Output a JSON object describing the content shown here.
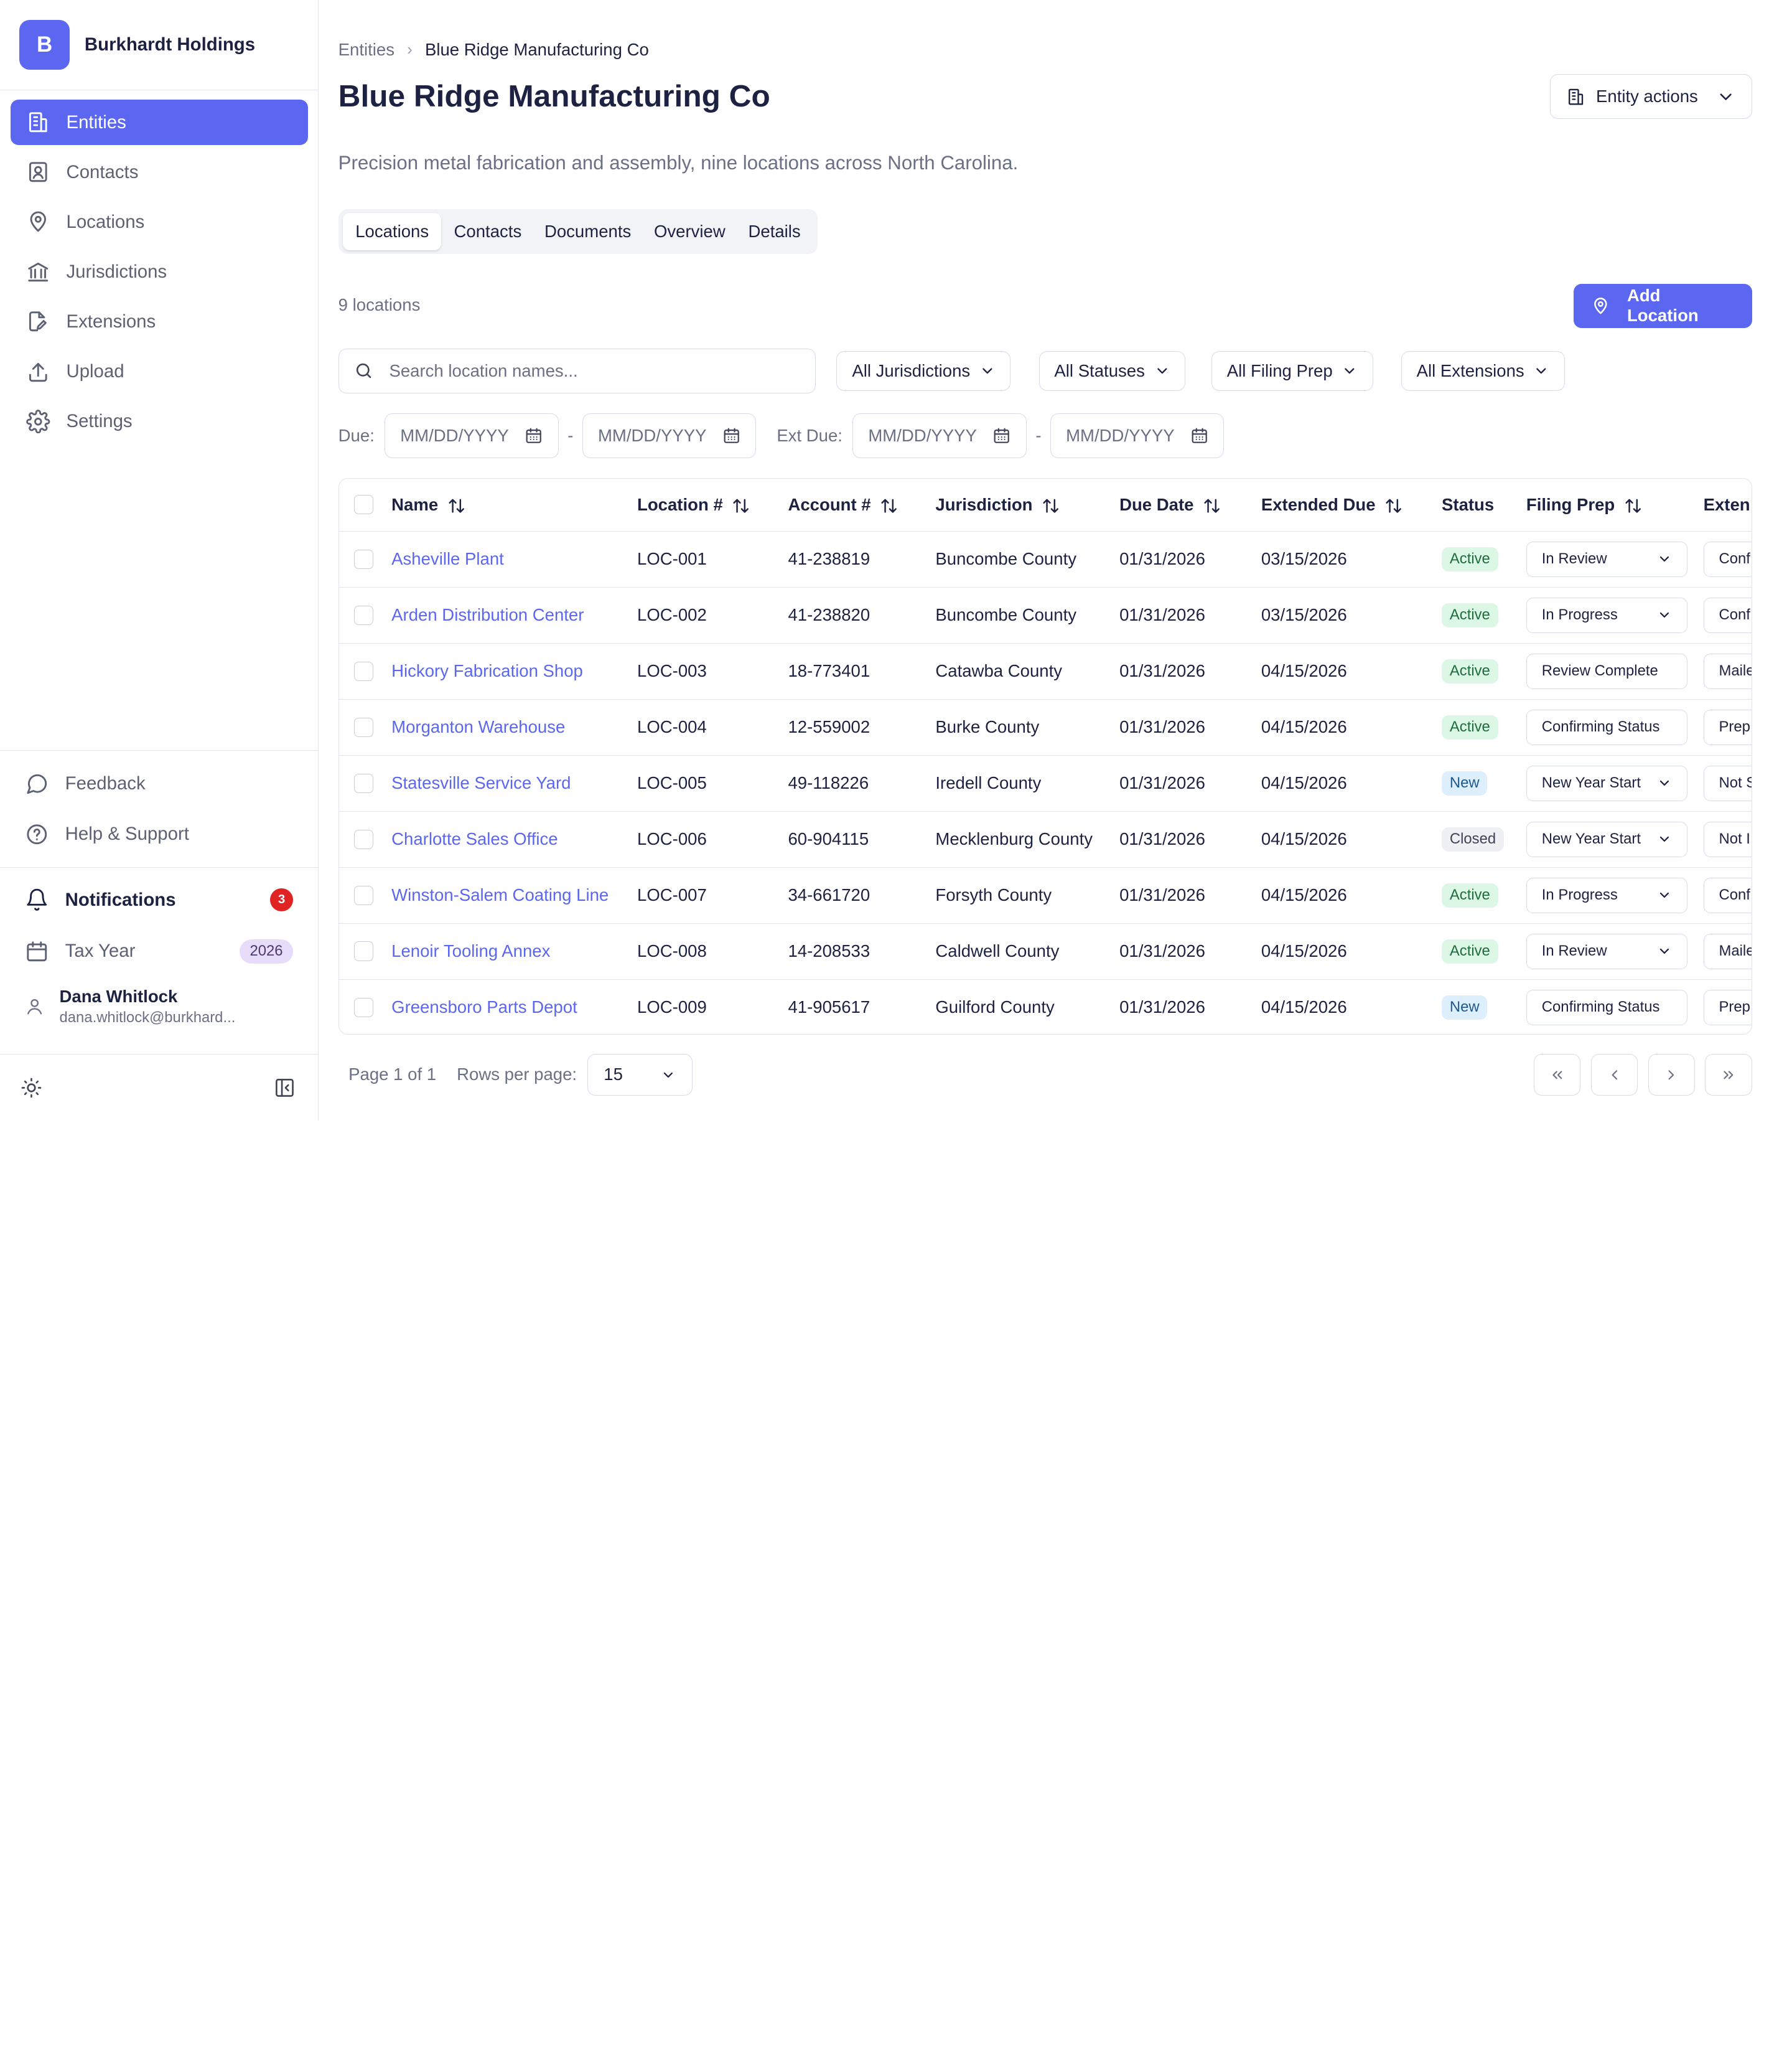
{
  "org": {
    "logo_letter": "B",
    "name": "Burkhardt Holdings"
  },
  "nav": [
    {
      "label": "Entities",
      "icon": "building-icon",
      "active": true
    },
    {
      "label": "Contacts",
      "icon": "contact-icon"
    },
    {
      "label": "Locations",
      "icon": "map-pin-icon"
    },
    {
      "label": "Jurisdictions",
      "icon": "landmark-icon"
    },
    {
      "label": "Extensions",
      "icon": "file-edit-icon"
    },
    {
      "label": "Upload",
      "icon": "upload-icon"
    },
    {
      "label": "Settings",
      "icon": "gear-icon"
    }
  ],
  "sidebar_bottom": {
    "feedback": "Feedback",
    "help": "Help & Support",
    "notifications": "Notifications",
    "notifications_count": "3",
    "tax_year_label": "Tax Year",
    "tax_year": "2026"
  },
  "user": {
    "name": "Dana Whitlock",
    "email": "dana.whitlock@burkhard..."
  },
  "breadcrumb": {
    "root": "Entities",
    "current": "Blue Ridge Manufacturing Co"
  },
  "page": {
    "title": "Blue Ridge Manufacturing Co",
    "actions_label": "Entity actions",
    "description": "Precision metal fabrication and assembly, nine locations across North Carolina.",
    "count": "9 locations",
    "add_label": "Add Location"
  },
  "tabs": [
    "Locations",
    "Contacts",
    "Documents",
    "Overview",
    "Details"
  ],
  "filters": {
    "search_placeholder": "Search location names...",
    "jurisdictions": "All Jurisdictions",
    "statuses": "All Statuses",
    "filing_prep": "All Filing Prep",
    "extensions": "All Extensions",
    "due_label": "Due:",
    "ext_due_label": "Ext Due:",
    "date_placeholder": "MM/DD/YYYY",
    "dash": "-"
  },
  "table": {
    "columns": [
      "Name",
      "Location #",
      "Account #",
      "Jurisdiction",
      "Due Date",
      "Extended Due",
      "Status",
      "Filing Prep",
      "Exten"
    ],
    "rows": [
      {
        "name": "Asheville Plant",
        "loc": "LOC-001",
        "acct": "41-238819",
        "jur": "Buncombe County",
        "due": "01/31/2026",
        "ext_due": "03/15/2026",
        "status": "Active",
        "prep": "In Review",
        "prep_dd": true,
        "ext": "Conf"
      },
      {
        "name": "Arden Distribution Center",
        "loc": "LOC-002",
        "acct": "41-238820",
        "jur": "Buncombe County",
        "due": "01/31/2026",
        "ext_due": "03/15/2026",
        "status": "Active",
        "prep": "In Progress",
        "prep_dd": true,
        "ext": "Conf"
      },
      {
        "name": "Hickory Fabrication Shop",
        "loc": "LOC-003",
        "acct": "18-773401",
        "jur": "Catawba County",
        "due": "01/31/2026",
        "ext_due": "04/15/2026",
        "status": "Active",
        "prep": "Review Complete",
        "prep_dd": false,
        "ext": "Maile"
      },
      {
        "name": "Morganton Warehouse",
        "loc": "LOC-004",
        "acct": "12-559002",
        "jur": "Burke County",
        "due": "01/31/2026",
        "ext_due": "04/15/2026",
        "status": "Active",
        "prep": "Confirming Status",
        "prep_dd": false,
        "ext": "Prep"
      },
      {
        "name": "Statesville Service Yard",
        "loc": "LOC-005",
        "acct": "49-118226",
        "jur": "Iredell County",
        "due": "01/31/2026",
        "ext_due": "04/15/2026",
        "status": "New",
        "prep": "New Year Start",
        "prep_dd": true,
        "ext": "Not S"
      },
      {
        "name": "Charlotte Sales Office",
        "loc": "LOC-006",
        "acct": "60-904115",
        "jur": "Mecklenburg County",
        "due": "01/31/2026",
        "ext_due": "04/15/2026",
        "status": "Closed",
        "prep": "New Year Start",
        "prep_dd": true,
        "ext": "Not I"
      },
      {
        "name": "Winston-Salem Coating Line",
        "loc": "LOC-007",
        "acct": "34-661720",
        "jur": "Forsyth County",
        "due": "01/31/2026",
        "ext_due": "04/15/2026",
        "status": "Active",
        "prep": "In Progress",
        "prep_dd": true,
        "ext": "Conf"
      },
      {
        "name": "Lenoir Tooling Annex",
        "loc": "LOC-008",
        "acct": "14-208533",
        "jur": "Caldwell County",
        "due": "01/31/2026",
        "ext_due": "04/15/2026",
        "status": "Active",
        "prep": "In Review",
        "prep_dd": true,
        "ext": "Maile"
      },
      {
        "name": "Greensboro Parts Depot",
        "loc": "LOC-009",
        "acct": "41-905617",
        "jur": "Guilford County",
        "due": "01/31/2026",
        "ext_due": "04/15/2026",
        "status": "New",
        "prep": "Confirming Status",
        "prep_dd": false,
        "ext": "Prep"
      }
    ]
  },
  "pagination": {
    "page_text": "Page 1 of 1",
    "rows_label": "Rows per page:",
    "rows_value": "15"
  },
  "colors": {
    "accent": "#5b67f1",
    "active_bg": "#dcf7e6",
    "new_bg": "#ddeefc",
    "closed_bg": "#eef0f4",
    "badge_red": "#e02424"
  }
}
